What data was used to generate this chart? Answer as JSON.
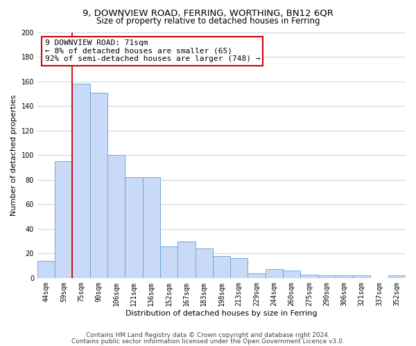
{
  "title": "9, DOWNVIEW ROAD, FERRING, WORTHING, BN12 6QR",
  "subtitle": "Size of property relative to detached houses in Ferring",
  "xlabel": "Distribution of detached houses by size in Ferring",
  "ylabel": "Number of detached properties",
  "categories": [
    "44sqm",
    "59sqm",
    "75sqm",
    "90sqm",
    "106sqm",
    "121sqm",
    "136sqm",
    "152sqm",
    "167sqm",
    "183sqm",
    "198sqm",
    "213sqm",
    "229sqm",
    "244sqm",
    "260sqm",
    "275sqm",
    "290sqm",
    "306sqm",
    "321sqm",
    "337sqm",
    "352sqm"
  ],
  "values": [
    14,
    95,
    158,
    151,
    100,
    82,
    82,
    26,
    30,
    24,
    18,
    16,
    4,
    7,
    6,
    3,
    2,
    2,
    2,
    0,
    2
  ],
  "bar_color": "#c9daf8",
  "bar_edge_color": "#6fa8dc",
  "vline_color": "#cc0000",
  "annotation_text": "9 DOWNVIEW ROAD: 71sqm\n← 8% of detached houses are smaller (65)\n92% of semi-detached houses are larger (748) →",
  "annotation_box_color": "#ffffff",
  "annotation_box_edge": "#cc0000",
  "ylim": [
    0,
    200
  ],
  "yticks": [
    0,
    20,
    40,
    60,
    80,
    100,
    120,
    140,
    160,
    180,
    200
  ],
  "footer_line1": "Contains HM Land Registry data © Crown copyright and database right 2024.",
  "footer_line2": "Contains public sector information licensed under the Open Government Licence v3.0.",
  "background_color": "#ffffff",
  "grid_color": "#c8d8e8",
  "title_fontsize": 9.5,
  "subtitle_fontsize": 8.5,
  "xlabel_fontsize": 8,
  "ylabel_fontsize": 8,
  "tick_fontsize": 7,
  "annotation_fontsize": 8,
  "footer_fontsize": 6.5
}
